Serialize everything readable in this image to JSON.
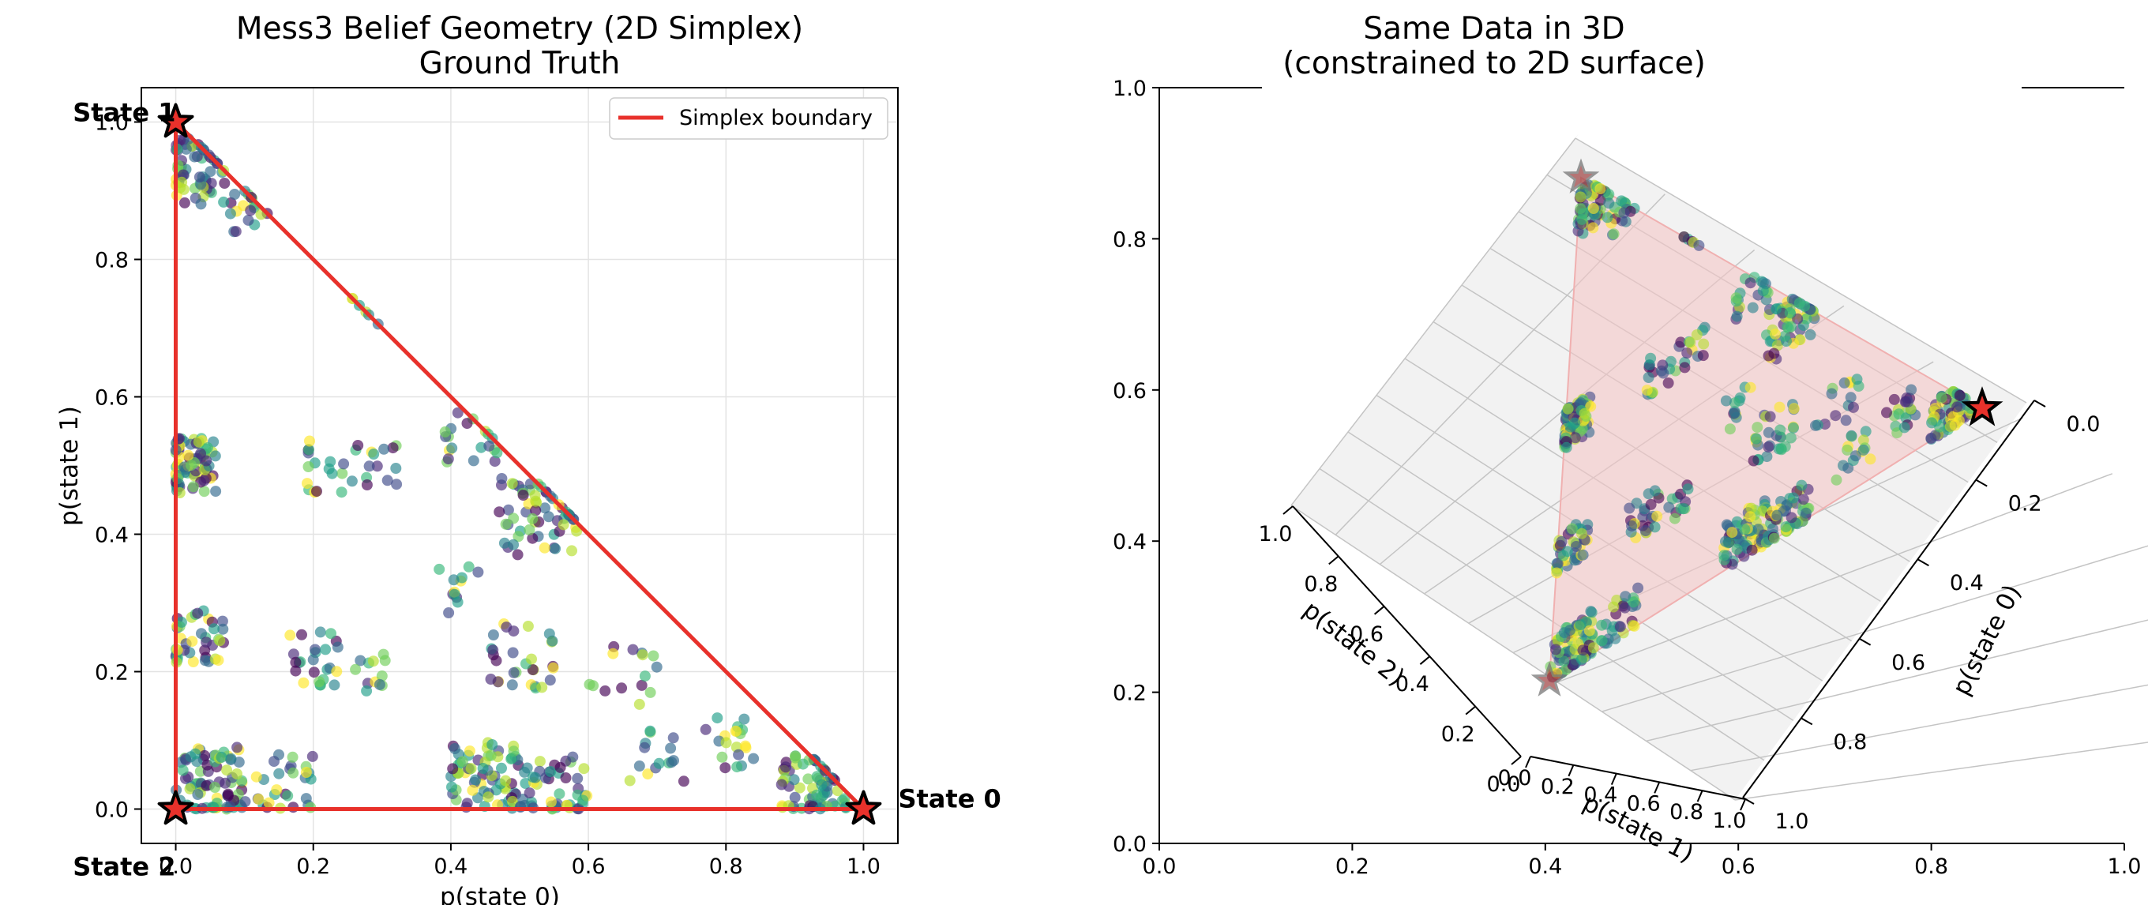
{
  "chart_data": [
    {
      "type": "scatter",
      "title": "Mess3 Belief Geometry (2D Simplex)",
      "subtitle": "Ground Truth",
      "xlabel": "p(state 0)",
      "ylabel": "p(state 1)",
      "xlim": [
        -0.05,
        1.05
      ],
      "ylim": [
        -0.05,
        1.05
      ],
      "xticks": [
        "0.0",
        "0.2",
        "0.4",
        "0.6",
        "0.8",
        "1.0"
      ],
      "yticks": [
        "0.0",
        "0.2",
        "0.4",
        "0.6",
        "0.8",
        "1.0"
      ],
      "grid": true,
      "legend": {
        "placement": "top-right",
        "entries": [
          "Simplex boundary"
        ]
      },
      "colormap": "viridis",
      "boundary_color": "#e8312b",
      "vertices": [
        {
          "label": "State 0",
          "x": 1.0,
          "y": 0.0
        },
        {
          "label": "State 1",
          "x": 0.0,
          "y": 1.0
        },
        {
          "label": "State 2",
          "x": 0.0,
          "y": 0.0
        }
      ],
      "clusters": [
        {
          "x": 0.02,
          "y": 0.93,
          "r": 0.05,
          "n": 60
        },
        {
          "x": 0.1,
          "y": 0.88,
          "r": 0.04,
          "n": 20
        },
        {
          "x": 0.02,
          "y": 0.5,
          "r": 0.04,
          "n": 80
        },
        {
          "x": 0.03,
          "y": 0.25,
          "r": 0.04,
          "n": 40
        },
        {
          "x": 0.05,
          "y": 0.04,
          "r": 0.05,
          "n": 80
        },
        {
          "x": 0.15,
          "y": 0.03,
          "r": 0.05,
          "n": 30
        },
        {
          "x": 0.45,
          "y": 0.05,
          "r": 0.05,
          "n": 70
        },
        {
          "x": 0.55,
          "y": 0.03,
          "r": 0.05,
          "n": 50
        },
        {
          "x": 0.93,
          "y": 0.03,
          "r": 0.05,
          "n": 70
        },
        {
          "x": 0.53,
          "y": 0.43,
          "r": 0.06,
          "n": 60
        },
        {
          "x": 0.43,
          "y": 0.54,
          "r": 0.04,
          "n": 20
        },
        {
          "x": 0.2,
          "y": 0.22,
          "r": 0.04,
          "n": 25
        },
        {
          "x": 0.28,
          "y": 0.2,
          "r": 0.03,
          "n": 12
        },
        {
          "x": 0.23,
          "y": 0.5,
          "r": 0.04,
          "n": 20
        },
        {
          "x": 0.3,
          "y": 0.5,
          "r": 0.03,
          "n": 12
        },
        {
          "x": 0.5,
          "y": 0.22,
          "r": 0.05,
          "n": 30
        },
        {
          "x": 0.8,
          "y": 0.1,
          "r": 0.04,
          "n": 20
        },
        {
          "x": 0.65,
          "y": 0.2,
          "r": 0.05,
          "n": 15
        },
        {
          "x": 0.3,
          "y": 0.8,
          "r": 0.03,
          "n": 6
        },
        {
          "x": 0.4,
          "y": 0.32,
          "r": 0.04,
          "n": 12
        },
        {
          "x": 0.7,
          "y": 0.08,
          "r": 0.04,
          "n": 15
        }
      ]
    },
    {
      "type": "scatter",
      "title": "Same Data in 3D",
      "subtitle": "(constrained to 2D surface)",
      "xlabel": "p(state 0)",
      "ylabel": "p(state 1)",
      "zlabel": "p(state 2)",
      "frame_xticks": [
        "0.0",
        "0.2",
        "0.4",
        "0.6",
        "0.8",
        "1.0"
      ],
      "frame_yticks": [
        "0.0",
        "0.2",
        "0.4",
        "0.6",
        "0.8",
        "1.0"
      ],
      "state0_ticks": [
        "0.0",
        "0.2",
        "0.4",
        "0.6",
        "0.8",
        "1.0"
      ],
      "state1_ticks": [
        "0.0",
        "0.2",
        "0.4",
        "0.6",
        "0.8",
        "1.0"
      ],
      "state2_ticks": [
        "1.0",
        "0.8",
        "0.6",
        "0.4",
        "0.2",
        "0.0"
      ],
      "surface_color": "#f4c6c6",
      "colormap": "viridis"
    }
  ]
}
